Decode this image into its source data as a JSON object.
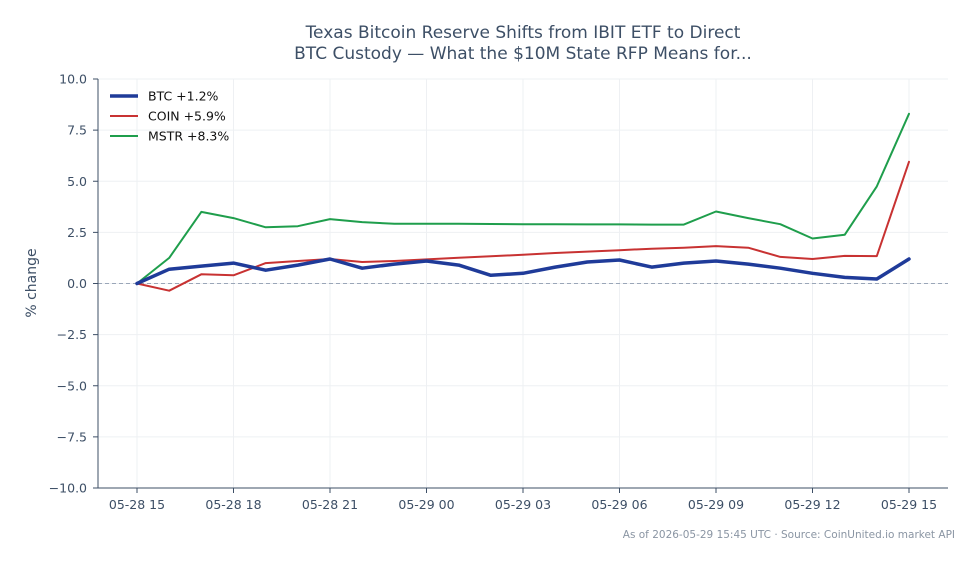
{
  "chart_data": {
    "type": "line",
    "title_lines": [
      "Texas Bitcoin Reserve Shifts from IBIT ETF to Direct",
      "BTC Custody — What the $10M State RFP Means for..."
    ],
    "xlabel": "",
    "ylabel": "% change",
    "ylim": [
      -10,
      10
    ],
    "yticks": [
      -10,
      -7.5,
      -5,
      -2.5,
      0,
      2.5,
      5,
      7.5,
      10
    ],
    "ytick_labels": [
      "−10.0",
      "−7.5",
      "−5.0",
      "−2.5",
      "0.0",
      "2.5",
      "5.0",
      "7.5",
      "10.0"
    ],
    "x_hours": [
      0,
      1,
      2,
      3,
      4,
      5,
      6,
      7,
      8,
      9,
      10,
      11,
      12,
      13,
      14,
      15,
      16,
      17,
      18,
      19,
      20,
      21,
      22,
      23,
      24
    ],
    "xticks": [
      0,
      3,
      6,
      9,
      12,
      15,
      18,
      21,
      24
    ],
    "xtick_labels": [
      "05-28 15",
      "05-28 18",
      "05-28 21",
      "05-29 00",
      "05-29 03",
      "05-29 06",
      "05-29 09",
      "05-29 12",
      "05-29 15"
    ],
    "grid": true,
    "zero_line": true,
    "legend_position": "top-left",
    "series": [
      {
        "name": "BTC +1.2%",
        "color": "#1f3b99",
        "values": [
          0,
          0.7,
          0.85,
          1.0,
          0.65,
          0.9,
          1.2,
          0.75,
          0.95,
          1.1,
          0.9,
          0.4,
          0.5,
          0.8,
          1.05,
          1.15,
          0.8,
          1.0,
          1.1,
          0.95,
          0.75,
          0.5,
          0.3,
          0.22,
          1.2
        ]
      },
      {
        "name": "COIN +5.9%",
        "color": "#c83232",
        "values": [
          0,
          -0.35,
          0.45,
          0.4,
          1.0,
          1.1,
          1.2,
          1.05,
          1.1,
          1.18,
          1.26,
          1.33,
          1.41,
          1.49,
          1.56,
          1.63,
          1.7,
          1.75,
          1.83,
          1.75,
          1.3,
          1.2,
          1.35,
          1.34,
          5.95
        ]
      },
      {
        "name": "MSTR +8.3%",
        "color": "#1f9e4c",
        "values": [
          0,
          1.25,
          3.5,
          3.2,
          2.75,
          2.8,
          3.15,
          3.0,
          2.92,
          2.92,
          2.92,
          2.91,
          2.9,
          2.9,
          2.89,
          2.89,
          2.88,
          2.88,
          3.52,
          3.2,
          2.9,
          2.2,
          2.38,
          4.75,
          8.3
        ]
      }
    ]
  },
  "footer": {
    "text": "As of 2026-05-29 15:45 UTC · Source: CoinUnited.io market API"
  }
}
